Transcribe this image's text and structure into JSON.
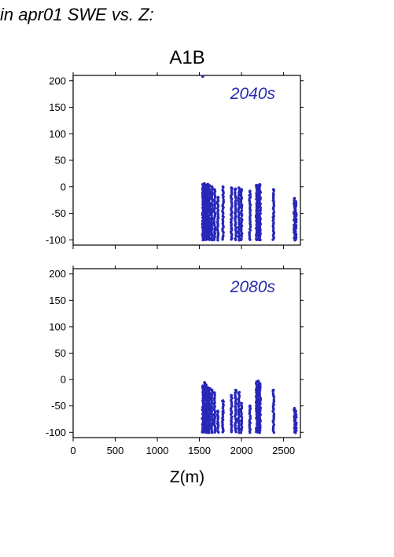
{
  "figure": {
    "title": "in apr01 SWE vs. Z:",
    "scenario": "A1B",
    "point_color": "#2626b8"
  },
  "chart_data": [
    {
      "type": "scatter",
      "panel_label": "2040s",
      "xlabel": "",
      "ylabel": "",
      "xlim": [
        0,
        2700
      ],
      "ylim": [
        -110,
        210
      ],
      "xticks": [
        0,
        500,
        1000,
        1500,
        2000,
        2500
      ],
      "yticks": [
        -100,
        -50,
        0,
        50,
        100,
        150,
        200
      ],
      "show_x_tick_labels": false,
      "grid": false,
      "columns": [
        {
          "x": 1540,
          "y_min": -100,
          "y_max": 4
        },
        {
          "x": 1560,
          "y_min": -100,
          "y_max": 6
        },
        {
          "x": 1580,
          "y_min": -100,
          "y_max": 3
        },
        {
          "x": 1600,
          "y_min": -100,
          "y_max": 5
        },
        {
          "x": 1620,
          "y_min": -100,
          "y_max": 2
        },
        {
          "x": 1650,
          "y_min": -100,
          "y_max": 0
        },
        {
          "x": 1680,
          "y_min": -100,
          "y_max": -5
        },
        {
          "x": 1720,
          "y_min": -100,
          "y_max": -20
        },
        {
          "x": 1780,
          "y_min": -100,
          "y_max": 0
        },
        {
          "x": 1880,
          "y_min": -100,
          "y_max": -2
        },
        {
          "x": 1930,
          "y_min": -100,
          "y_max": -4
        },
        {
          "x": 1970,
          "y_min": -100,
          "y_max": -2
        },
        {
          "x": 2000,
          "y_min": -100,
          "y_max": -5
        },
        {
          "x": 2100,
          "y_min": -100,
          "y_max": -8
        },
        {
          "x": 2180,
          "y_min": -100,
          "y_max": 3
        },
        {
          "x": 2200,
          "y_min": -100,
          "y_max": 2
        },
        {
          "x": 2220,
          "y_min": -100,
          "y_max": 4
        },
        {
          "x": 2380,
          "y_min": -100,
          "y_max": -5
        },
        {
          "x": 2630,
          "y_min": -100,
          "y_max": -22
        },
        {
          "x": 2645,
          "y_min": -100,
          "y_max": -28
        }
      ],
      "extra_points": [
        {
          "x": 1540,
          "y": 208
        }
      ]
    },
    {
      "type": "scatter",
      "panel_label": "2080s",
      "xlabel": "Z(m)",
      "ylabel": "",
      "xlim": [
        0,
        2700
      ],
      "ylim": [
        -110,
        210
      ],
      "xticks": [
        0,
        500,
        1000,
        1500,
        2000,
        2500
      ],
      "yticks": [
        -100,
        -50,
        0,
        50,
        100,
        150,
        200
      ],
      "show_x_tick_labels": true,
      "grid": false,
      "columns": [
        {
          "x": 1540,
          "y_min": -100,
          "y_max": -12
        },
        {
          "x": 1560,
          "y_min": -100,
          "y_max": -6
        },
        {
          "x": 1580,
          "y_min": -100,
          "y_max": -10
        },
        {
          "x": 1600,
          "y_min": -100,
          "y_max": -15
        },
        {
          "x": 1620,
          "y_min": -100,
          "y_max": -18
        },
        {
          "x": 1650,
          "y_min": -100,
          "y_max": -20
        },
        {
          "x": 1680,
          "y_min": -100,
          "y_max": -25
        },
        {
          "x": 1720,
          "y_min": -100,
          "y_max": -60
        },
        {
          "x": 1780,
          "y_min": -100,
          "y_max": -40
        },
        {
          "x": 1880,
          "y_min": -100,
          "y_max": -30
        },
        {
          "x": 1930,
          "y_min": -100,
          "y_max": -20
        },
        {
          "x": 1970,
          "y_min": -100,
          "y_max": -25
        },
        {
          "x": 2000,
          "y_min": -100,
          "y_max": -45
        },
        {
          "x": 2100,
          "y_min": -100,
          "y_max": -50
        },
        {
          "x": 2180,
          "y_min": -100,
          "y_max": -5
        },
        {
          "x": 2200,
          "y_min": -100,
          "y_max": -3
        },
        {
          "x": 2220,
          "y_min": -100,
          "y_max": -8
        },
        {
          "x": 2380,
          "y_min": -100,
          "y_max": -20
        },
        {
          "x": 2630,
          "y_min": -100,
          "y_max": -55
        },
        {
          "x": 2645,
          "y_min": -100,
          "y_max": -60
        }
      ],
      "extra_points": []
    }
  ]
}
